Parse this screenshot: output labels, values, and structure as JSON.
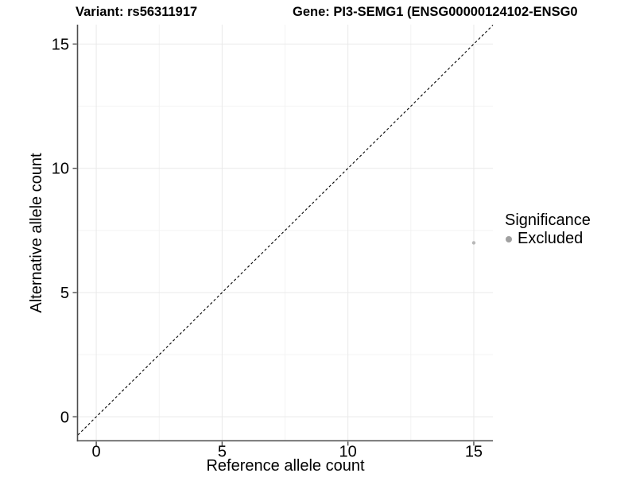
{
  "chart_data": {
    "type": "scatter",
    "titles": {
      "left": "Variant: rs56311917",
      "right": "Gene: PI3-SEMG1 (ENSG00000124102-ENSG0"
    },
    "xlabel": "Reference allele count",
    "ylabel": "Alternative allele count",
    "x_ticks": [
      0,
      5,
      10,
      15
    ],
    "y_ticks": [
      0,
      5,
      10,
      15
    ],
    "x_minor_ticks": [
      2.5,
      7.5,
      12.5
    ],
    "y_minor_ticks": [
      2.5,
      7.5,
      12.5
    ],
    "xlim": [
      -0.73,
      15.76
    ],
    "ylim": [
      -0.95,
      15.78
    ],
    "grid": true,
    "legend_position": "right",
    "reference_line": {
      "type": "identity",
      "equation": "y = x",
      "style": "dashed",
      "color": "#000000"
    },
    "series": [
      {
        "name": "Excluded",
        "color": "#b8b8b8",
        "points": [
          {
            "x": 15,
            "y": 7
          }
        ]
      }
    ],
    "legend": {
      "title": "Significance",
      "items": [
        {
          "label": "Excluded",
          "color": "#a0a0a0",
          "marker": "circle"
        }
      ]
    },
    "colors": {
      "background": "#ffffff",
      "axis_line": "#4d4d4d",
      "grid_major": "#e9e9e9",
      "grid_minor": "#f3f3f3",
      "text": "#000000"
    }
  }
}
